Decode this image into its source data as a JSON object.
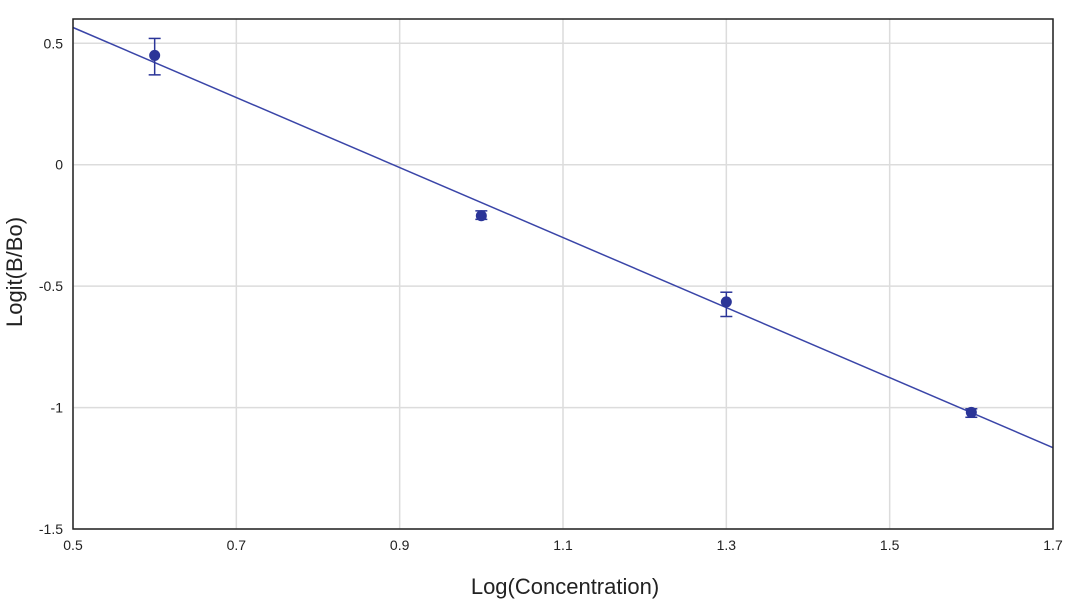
{
  "chart_data": {
    "type": "scatter",
    "title": "",
    "xlabel": "Log(Concentration)",
    "ylabel": "Logit(B/Bo)",
    "xlim": [
      0.5,
      1.7
    ],
    "ylim": [
      -1.5,
      0.6
    ],
    "x_ticks": [
      0.5,
      0.7,
      0.9,
      1.1,
      1.3,
      1.5,
      1.7
    ],
    "x_tick_labels": [
      "0.5",
      "0.7",
      "0.9",
      "1.1",
      "1.3",
      "1.5",
      "1.7"
    ],
    "y_ticks": [
      0.5,
      0,
      -0.5,
      -1,
      -1.5
    ],
    "y_tick_labels": [
      "0.5",
      "0",
      "-0.5",
      "-1",
      "-1.5"
    ],
    "grid": true,
    "legend": "none",
    "points": [
      {
        "x": 0.6,
        "y": 0.45,
        "err_low": 0.37,
        "err_high": 0.52
      },
      {
        "x": 1.0,
        "y": -0.21,
        "err_low": -0.225,
        "err_high": -0.19
      },
      {
        "x": 1.3,
        "y": -0.565,
        "err_low": -0.625,
        "err_high": -0.525
      },
      {
        "x": 1.6,
        "y": -1.02,
        "err_low": -1.04,
        "err_high": -1.005
      }
    ],
    "fit_line": {
      "x": [
        0.5,
        1.7
      ],
      "y": [
        0.565,
        -1.165
      ]
    },
    "colors": {
      "series": "#2b3598",
      "fit_line": "#3a45a8",
      "grid": "#dcdcdc",
      "axis": "#222222"
    }
  }
}
